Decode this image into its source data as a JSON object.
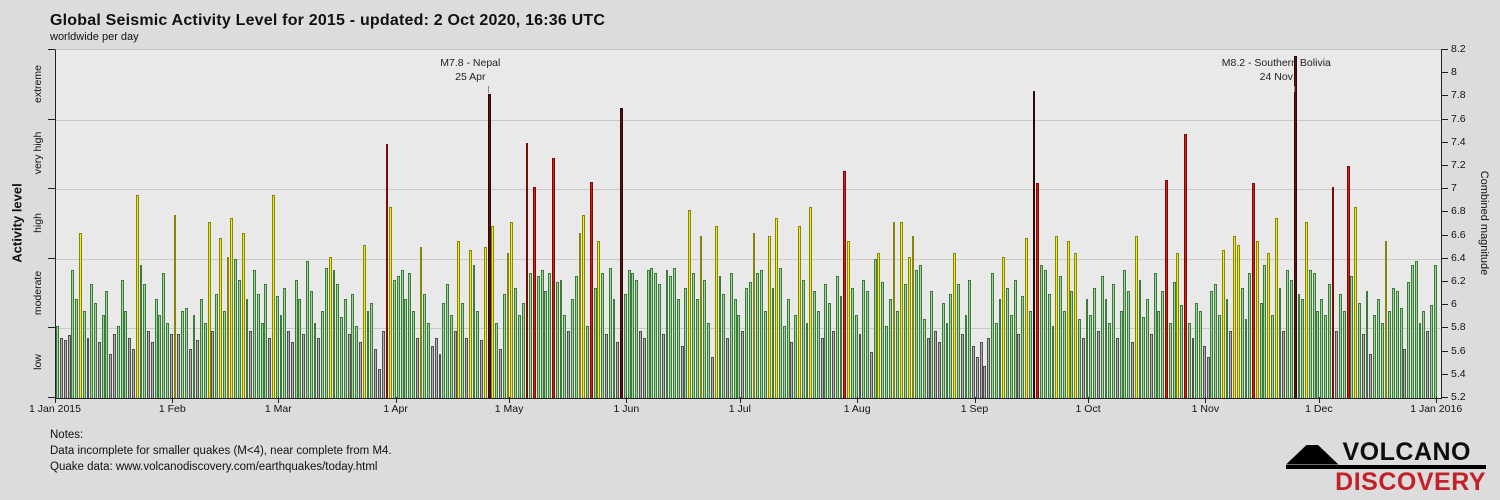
{
  "header": {
    "title": "Global Seismic Activity Level for 2015 - updated:  2 Oct 2020, 16:36 UTC",
    "subtitle": "worldwide per day"
  },
  "chart_data": {
    "type": "bar",
    "title": "Global Seismic Activity Level for 2015",
    "grid": "horizontal-at-level-boundaries",
    "y_left": {
      "label": "Activity level",
      "categories_bottom_to_top": [
        "low",
        "moderate",
        "high",
        "very high",
        "extreme"
      ]
    },
    "y_right": {
      "label": "Combined magnitude",
      "min": 5.2,
      "max": 8.2,
      "tick_step": 0.2,
      "tick_labels_top_to_bottom": [
        "8.2",
        "8",
        "7.8",
        "7.6",
        "7.4",
        "7.2",
        "7",
        "6.8",
        "6.6",
        "6.4",
        "6.2",
        "6",
        "5.8",
        "5.6",
        "5.4",
        "5.2"
      ]
    },
    "levels": [
      {
        "name": "low",
        "max": 5.8,
        "fill": "#b4b1b4",
        "border": "#4f4f4f"
      },
      {
        "name": "moderate",
        "max": 6.4,
        "fill": "#9fd79a",
        "border": "#3d7a3d"
      },
      {
        "name": "high",
        "max": 7.0,
        "fill": "#f2ee19",
        "border": "#85850a"
      },
      {
        "name": "very high",
        "max": 7.6,
        "fill": "#dd1c10",
        "border": "#7a0c08"
      },
      {
        "name": "extreme",
        "max": 8.2,
        "fill": "#5e120e",
        "border": "#2e0605"
      }
    ],
    "x_ticks": [
      {
        "day": 0,
        "label": "1 Jan 2015"
      },
      {
        "day": 31,
        "label": "1 Feb"
      },
      {
        "day": 59,
        "label": "1 Mar"
      },
      {
        "day": 90,
        "label": "1 Apr"
      },
      {
        "day": 120,
        "label": "1 May"
      },
      {
        "day": 151,
        "label": "1 Jun"
      },
      {
        "day": 181,
        "label": "1 Jul"
      },
      {
        "day": 212,
        "label": "1 Aug"
      },
      {
        "day": 243,
        "label": "1 Sep"
      },
      {
        "day": 273,
        "label": "1 Oct"
      },
      {
        "day": 304,
        "label": "1 Nov"
      },
      {
        "day": 334,
        "label": "1 Dec"
      },
      {
        "day": 365,
        "label": "1 Jan 2016"
      }
    ],
    "annotations": [
      {
        "line1": "M7.8 - Nepal",
        "line2": "25 Apr",
        "day": 114,
        "value": 7.82
      },
      {
        "line1": "M8.2 - Southern Bolivia",
        "line2": "24 Nov",
        "day": 327,
        "value": 8.15
      }
    ],
    "values": [
      5.82,
      5.72,
      5.7,
      5.74,
      6.3,
      6.05,
      6.62,
      5.95,
      5.72,
      6.18,
      6.02,
      5.68,
      5.92,
      6.12,
      5.58,
      5.75,
      5.82,
      6.22,
      5.95,
      5.72,
      5.62,
      6.95,
      6.35,
      6.18,
      5.78,
      5.68,
      6.05,
      5.92,
      6.28,
      5.85,
      5.75,
      6.78,
      5.75,
      5.95,
      5.98,
      5.62,
      5.92,
      5.7,
      6.05,
      5.85,
      6.72,
      5.78,
      6.1,
      6.58,
      5.95,
      6.42,
      6.75,
      6.4,
      6.22,
      6.62,
      6.05,
      5.78,
      6.3,
      6.1,
      5.85,
      6.18,
      5.72,
      6.95,
      6.08,
      5.92,
      6.15,
      5.78,
      5.68,
      6.22,
      6.05,
      5.75,
      6.38,
      6.12,
      5.85,
      5.72,
      5.95,
      6.32,
      6.42,
      6.3,
      6.18,
      5.9,
      6.05,
      5.75,
      6.1,
      5.82,
      5.68,
      6.52,
      5.95,
      6.02,
      5.62,
      5.45,
      5.78,
      7.39,
      6.85,
      6.22,
      6.25,
      6.3,
      6.05,
      6.28,
      5.95,
      5.72,
      6.5,
      6.1,
      5.85,
      5.65,
      5.72,
      5.58,
      6.02,
      6.18,
      5.92,
      5.78,
      6.55,
      6.02,
      5.72,
      6.48,
      6.35,
      5.95,
      5.7,
      6.5,
      7.82,
      6.68,
      5.85,
      5.62,
      6.1,
      6.45,
      6.72,
      6.15,
      5.92,
      6.02,
      7.4,
      6.28,
      7.02,
      6.25,
      6.3,
      6.12,
      6.28,
      7.27,
      6.2,
      6.22,
      5.92,
      5.78,
      6.05,
      6.25,
      6.62,
      6.78,
      5.82,
      7.06,
      6.15,
      6.55,
      6.28,
      5.75,
      6.32,
      6.05,
      5.68,
      7.7,
      6.1,
      6.3,
      6.28,
      6.22,
      5.78,
      5.72,
      6.3,
      6.32,
      6.28,
      6.18,
      5.75,
      6.3,
      6.25,
      6.32,
      6.05,
      5.65,
      6.15,
      6.82,
      6.28,
      6.05,
      6.6,
      6.22,
      5.85,
      5.55,
      6.68,
      6.25,
      6.1,
      5.72,
      6.28,
      6.05,
      5.92,
      5.78,
      6.15,
      6.2,
      6.62,
      6.28,
      6.3,
      5.95,
      6.6,
      6.15,
      6.75,
      6.32,
      5.82,
      6.05,
      5.68,
      5.92,
      6.68,
      6.22,
      5.85,
      6.85,
      6.12,
      5.95,
      5.72,
      6.18,
      6.02,
      5.78,
      6.25,
      6.08,
      7.16,
      6.55,
      6.15,
      5.92,
      5.75,
      6.22,
      6.12,
      5.6,
      6.4,
      6.45,
      6.2,
      5.82,
      6.05,
      6.72,
      5.95,
      6.72,
      6.18,
      6.42,
      6.6,
      6.3,
      6.35,
      5.88,
      5.72,
      6.12,
      5.78,
      5.68,
      6.02,
      5.85,
      6.1,
      6.45,
      6.18,
      5.75,
      5.92,
      6.22,
      5.65,
      5.55,
      5.68,
      5.48,
      5.72,
      6.28,
      5.85,
      6.05,
      6.42,
      6.15,
      5.92,
      6.22,
      5.75,
      6.08,
      6.58,
      5.95,
      7.85,
      7.05,
      6.35,
      6.3,
      6.1,
      5.82,
      6.6,
      6.25,
      5.95,
      6.55,
      6.12,
      6.45,
      5.88,
      5.72,
      6.05,
      5.92,
      6.15,
      5.78,
      6.25,
      6.05,
      5.85,
      6.18,
      5.72,
      5.95,
      6.3,
      6.12,
      5.68,
      6.6,
      6.22,
      5.9,
      6.05,
      5.75,
      6.28,
      5.95,
      6.12,
      7.08,
      5.85,
      6.2,
      6.45,
      6.0,
      7.48,
      5.85,
      5.72,
      6.02,
      5.95,
      5.65,
      5.55,
      6.12,
      6.18,
      5.92,
      6.48,
      6.05,
      5.78,
      6.6,
      6.52,
      6.15,
      5.88,
      6.28,
      7.05,
      6.55,
      6.02,
      6.35,
      6.45,
      5.92,
      6.75,
      6.15,
      5.78,
      6.3,
      6.22,
      8.15,
      6.1,
      6.05,
      6.72,
      6.3,
      6.28,
      5.95,
      6.05,
      5.92,
      6.18,
      7.02,
      5.78,
      6.1,
      5.95,
      7.2,
      6.25,
      6.85,
      6.02,
      5.75,
      6.12,
      5.58,
      5.92,
      6.05,
      5.85,
      6.55,
      5.95,
      6.15,
      6.12,
      5.98,
      5.62,
      6.2,
      6.35,
      6.38,
      5.85,
      5.95,
      5.78,
      6.0,
      6.35
    ]
  },
  "notes": {
    "heading": "Notes:",
    "line1": "Data incomplete for smaller quakes (M<4), near complete from M4.",
    "line2": "Quake data: www.volcanodiscovery.com/earthquakes/today.html"
  },
  "logo": {
    "icon": "volcano-icon",
    "line1": "VOLCANO",
    "line2": "DISCOVERY",
    "accent_color": "#c32027"
  }
}
